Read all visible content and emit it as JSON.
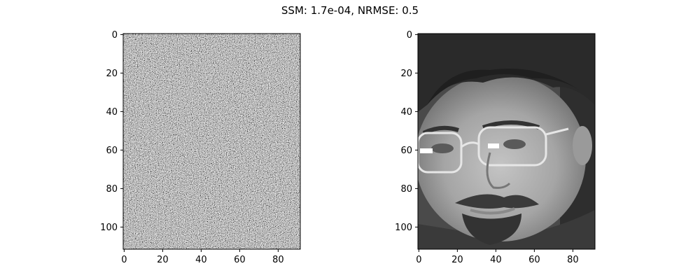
{
  "figure": {
    "title": "SSM: 1.7e-04, NRMSE: 0.5"
  },
  "panels": [
    {
      "id": "noise",
      "content": "random grayscale noise",
      "x_ticks": [
        "0",
        "20",
        "40",
        "60",
        "80"
      ],
      "y_ticks": [
        "0",
        "20",
        "40",
        "60",
        "80",
        "100"
      ]
    },
    {
      "id": "face",
      "content": "grayscale portrait of a man with glasses and a beard",
      "x_ticks": [
        "0",
        "20",
        "40",
        "60",
        "80"
      ],
      "y_ticks": [
        "0",
        "20",
        "40",
        "60",
        "80",
        "100"
      ]
    }
  ],
  "image_size": {
    "cols": 92,
    "rows": 112
  },
  "colors": {
    "background": "#ffffff",
    "axis": "#000000",
    "text": "#000000"
  }
}
